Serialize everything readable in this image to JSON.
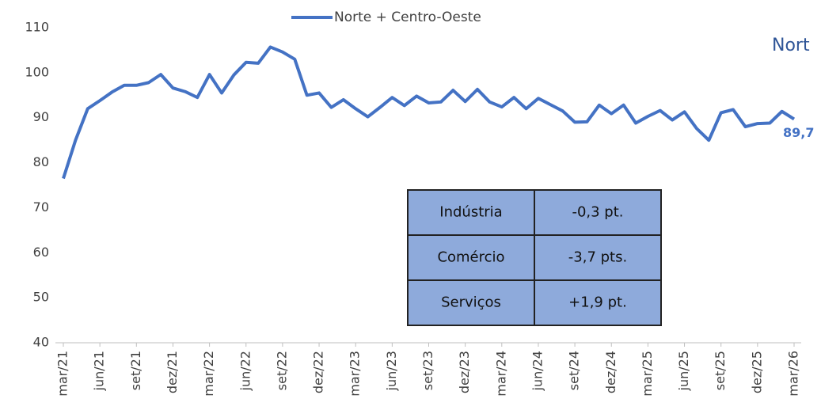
{
  "chart_data": {
    "type": "line",
    "title": "Nort",
    "categories": [
      "mar/21",
      null,
      null,
      "jun/21",
      null,
      null,
      "set/21",
      null,
      null,
      "dez/21",
      null,
      null,
      "mar/22",
      null,
      null,
      "jun/22",
      null,
      null,
      "set/22",
      null,
      null,
      "dez/22",
      null,
      null,
      "mar/23",
      null,
      null,
      "jun/23",
      null,
      null,
      "set/23",
      null,
      null,
      "dez/23",
      null,
      null,
      "mar/24",
      null,
      null,
      "jun/24",
      null,
      null,
      "set/24",
      null,
      null,
      "dez/24",
      null,
      null,
      "mar/25",
      null,
      null,
      "jun/25",
      null,
      null,
      "set/25",
      null,
      null,
      "dez/25",
      null,
      null,
      "mar/26"
    ],
    "series": [
      {
        "name": "Norte + Centro-Oeste",
        "color": "#4472c4",
        "values": [
          76.5,
          85,
          92,
          93.8,
          95.7,
          97.2,
          97.2,
          97.8,
          99.6,
          96.6,
          95.8,
          94.5,
          99.6,
          95.5,
          99.5,
          102.3,
          102.1,
          105.7,
          104.6,
          103,
          95,
          95.5,
          92.3,
          94,
          92,
          90.2,
          92.3,
          94.5,
          92.7,
          94.8,
          93.3,
          93.5,
          96.1,
          93.6,
          96.3,
          93.5,
          92.4,
          94.5,
          92,
          94.3,
          92.9,
          91.5,
          89,
          89.1,
          92.8,
          90.9,
          92.8,
          88.8,
          90.3,
          91.6,
          89.5,
          91.3,
          87.6,
          85,
          91.1,
          91.8,
          88,
          88.7,
          88.8,
          91.4,
          89.7
        ],
        "value_labels": [
          null,
          null,
          null,
          null,
          null,
          null,
          null,
          null,
          null,
          null,
          null,
          null,
          null,
          null,
          null,
          null,
          null,
          null,
          null,
          null,
          null,
          null,
          null,
          null,
          null,
          null,
          null,
          null,
          null,
          null,
          null,
          null,
          null,
          null,
          null,
          null,
          null,
          null,
          null,
          null,
          null,
          null,
          null,
          null,
          null,
          null,
          null,
          null,
          null,
          null,
          null,
          null,
          null,
          null,
          null,
          null,
          null,
          null,
          null,
          null,
          "89,7"
        ]
      }
    ],
    "ylim": [
      40,
      110
    ],
    "yticks": [
      40,
      50,
      60,
      70,
      80,
      90,
      100,
      110
    ],
    "grid": false,
    "table": {
      "rows": [
        [
          "Indústria",
          "-0,3 pt."
        ],
        [
          "Comércio",
          "-3,7 pts."
        ],
        [
          "Serviços",
          "+1,9 pt."
        ]
      ]
    }
  }
}
